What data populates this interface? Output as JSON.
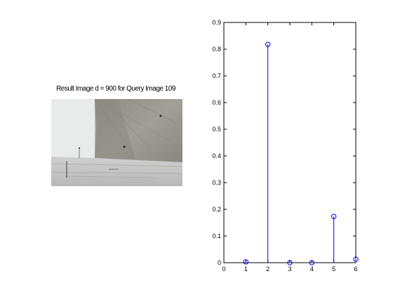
{
  "figure": {
    "left_panel": {
      "title": "Result Image d = 900 for Query Image 109",
      "image": {
        "description": "grey concrete building corner against pale sky",
        "colors": {
          "sky": "#e9eaea",
          "wall": "#9d9a92",
          "wall_dark": "#7e7b72",
          "ledge": "#c2c3c2"
        }
      }
    },
    "right_panel": {
      "chart_data": {
        "type": "stem",
        "title": "",
        "xlabel": "",
        "ylabel": "",
        "x": [
          1,
          2,
          3,
          4,
          5,
          6
        ],
        "y": [
          0.003,
          0.818,
          0.0,
          0.0,
          0.173,
          0.013
        ],
        "xlim": [
          0,
          6
        ],
        "ylim": [
          0,
          0.9
        ],
        "xticks": [
          "0",
          "1",
          "2",
          "3",
          "4",
          "5",
          "6"
        ],
        "yticks": [
          "0",
          "0.1",
          "0.2",
          "0.3",
          "0.4",
          "0.5",
          "0.6",
          "0.7",
          "0.8",
          "0.9"
        ],
        "grid": false,
        "color": "#0000ff",
        "marker": "circle-open"
      }
    }
  }
}
